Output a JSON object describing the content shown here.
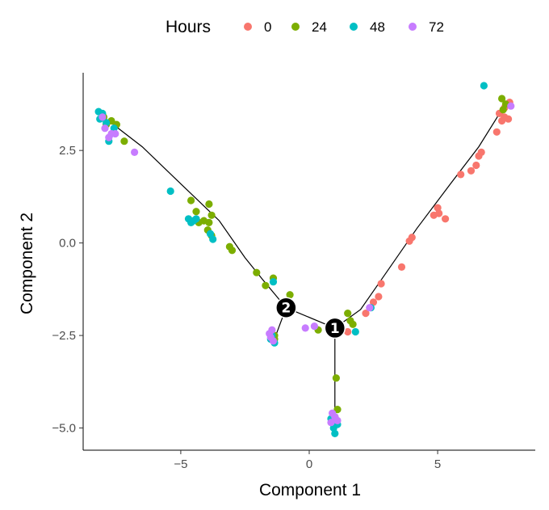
{
  "chart_data": {
    "type": "scatter",
    "xlabel": "Component 1",
    "ylabel": "Component 2",
    "xlim": [
      -8.8,
      8.8
    ],
    "ylim": [
      -5.6,
      4.6
    ],
    "x_ticks": [
      -5,
      0,
      5
    ],
    "y_ticks": [
      -5.0,
      -2.5,
      0.0,
      2.5
    ],
    "x_tick_labels": [
      "−5",
      "0",
      "5"
    ],
    "y_tick_labels": [
      "−5.0",
      "−2.5",
      "0.0",
      "2.5"
    ],
    "grid": false,
    "legend": {
      "title": "Hours",
      "position": "top",
      "entries": [
        {
          "label": "0",
          "color": "#F8766D"
        },
        {
          "label": "24",
          "color": "#7CAE00"
        },
        {
          "label": "48",
          "color": "#00BFC4"
        },
        {
          "label": "72",
          "color": "#C77CFF"
        }
      ]
    },
    "trajectory": [
      [
        [
          -8.0,
          3.4
        ],
        [
          -6.5,
          2.6
        ],
        [
          -5.0,
          1.6
        ],
        [
          -3.5,
          0.6
        ],
        [
          -2.5,
          -0.4
        ],
        [
          -1.8,
          -1.0
        ],
        [
          -0.9,
          -1.75
        ],
        [
          1.0,
          -2.3
        ]
      ],
      [
        [
          1.0,
          -2.3
        ],
        [
          2.0,
          -1.8
        ],
        [
          3.0,
          -0.8
        ],
        [
          4.2,
          0.4
        ],
        [
          5.5,
          1.6
        ],
        [
          6.6,
          2.6
        ],
        [
          7.5,
          3.6
        ]
      ],
      [
        [
          1.0,
          -2.3
        ],
        [
          1.0,
          -4.8
        ]
      ],
      [
        [
          -0.9,
          -1.75
        ],
        [
          -1.3,
          -2.5
        ]
      ]
    ],
    "branch_points": [
      {
        "label": "1",
        "x": 1.0,
        "y": -2.3
      },
      {
        "label": "2",
        "x": -0.9,
        "y": -1.75
      }
    ],
    "series": [
      {
        "name": "0",
        "color": "#F8766D",
        "points": [
          [
            7.8,
            3.8
          ],
          [
            7.6,
            3.65
          ],
          [
            7.4,
            3.5
          ],
          [
            7.6,
            3.4
          ],
          [
            7.75,
            3.35
          ],
          [
            7.5,
            3.3
          ],
          [
            7.3,
            3.0
          ],
          [
            6.7,
            2.45
          ],
          [
            6.6,
            2.35
          ],
          [
            6.5,
            2.1
          ],
          [
            6.3,
            1.95
          ],
          [
            5.9,
            1.85
          ],
          [
            5.0,
            0.95
          ],
          [
            5.05,
            0.8
          ],
          [
            5.3,
            0.65
          ],
          [
            4.85,
            0.75
          ],
          [
            4.0,
            0.15
          ],
          [
            3.9,
            0.05
          ],
          [
            3.6,
            -0.65
          ],
          [
            2.8,
            -1.1
          ],
          [
            2.7,
            -1.45
          ],
          [
            2.5,
            -1.6
          ],
          [
            2.2,
            -1.9
          ],
          [
            1.5,
            -2.4
          ]
        ]
      },
      {
        "name": "24",
        "color": "#7CAE00",
        "points": [
          [
            7.5,
            3.9
          ],
          [
            7.65,
            3.75
          ],
          [
            7.55,
            3.6
          ],
          [
            -7.7,
            3.3
          ],
          [
            -7.9,
            3.2
          ],
          [
            -8.0,
            3.4
          ],
          [
            -7.5,
            3.2
          ],
          [
            -7.2,
            2.75
          ],
          [
            -4.6,
            1.15
          ],
          [
            -3.9,
            1.05
          ],
          [
            -4.4,
            0.85
          ],
          [
            -4.1,
            0.6
          ],
          [
            -3.8,
            0.75
          ],
          [
            -3.9,
            0.55
          ],
          [
            -3.95,
            0.35
          ],
          [
            -4.3,
            0.55
          ],
          [
            -3.8,
            0.2
          ],
          [
            -3.1,
            -0.1
          ],
          [
            -3.0,
            -0.2
          ],
          [
            -2.05,
            -0.8
          ],
          [
            -1.7,
            -1.15
          ],
          [
            -1.4,
            -0.95
          ],
          [
            -0.75,
            -1.4
          ],
          [
            -1.35,
            -2.6
          ],
          [
            1.5,
            -1.9
          ],
          [
            1.6,
            -2.1
          ],
          [
            1.7,
            -2.2
          ],
          [
            1.05,
            -3.65
          ],
          [
            1.1,
            -4.5
          ],
          [
            1.0,
            -4.7
          ],
          [
            0.35,
            -2.35
          ],
          [
            -1.35,
            -2.5
          ]
        ]
      },
      {
        "name": "48",
        "color": "#00BFC4",
        "points": [
          [
            6.8,
            4.25
          ],
          [
            -8.2,
            3.55
          ],
          [
            -8.05,
            3.5
          ],
          [
            -8.15,
            3.35
          ],
          [
            -7.9,
            3.25
          ],
          [
            -7.6,
            3.1
          ],
          [
            -7.8,
            2.75
          ],
          [
            -5.4,
            1.4
          ],
          [
            -4.7,
            0.65
          ],
          [
            -4.6,
            0.55
          ],
          [
            -4.5,
            0.6
          ],
          [
            -4.4,
            0.65
          ],
          [
            -3.85,
            0.25
          ],
          [
            -3.75,
            0.1
          ],
          [
            -1.4,
            -1.05
          ],
          [
            -1.45,
            -2.5
          ],
          [
            -1.35,
            -2.7
          ],
          [
            -1.5,
            -2.6
          ],
          [
            0.85,
            -4.75
          ],
          [
            0.95,
            -5.0
          ],
          [
            1.0,
            -5.15
          ],
          [
            1.1,
            -4.9
          ],
          [
            1.8,
            -2.4
          ],
          [
            2.4,
            -1.75
          ]
        ]
      },
      {
        "name": "72",
        "color": "#C77CFF",
        "points": [
          [
            7.85,
            3.7
          ],
          [
            -8.05,
            3.4
          ],
          [
            -7.95,
            3.1
          ],
          [
            -7.7,
            2.95
          ],
          [
            -7.8,
            2.85
          ],
          [
            -7.55,
            2.95
          ],
          [
            -6.8,
            2.45
          ],
          [
            -1.55,
            -2.45
          ],
          [
            -1.45,
            -2.35
          ],
          [
            -1.5,
            -2.55
          ],
          [
            -1.4,
            -2.65
          ],
          [
            -0.15,
            -2.3
          ],
          [
            0.2,
            -2.25
          ],
          [
            0.9,
            -4.6
          ],
          [
            1.0,
            -4.7
          ],
          [
            0.85,
            -4.85
          ],
          [
            1.1,
            -4.8
          ],
          [
            2.35,
            -1.75
          ]
        ]
      }
    ]
  }
}
